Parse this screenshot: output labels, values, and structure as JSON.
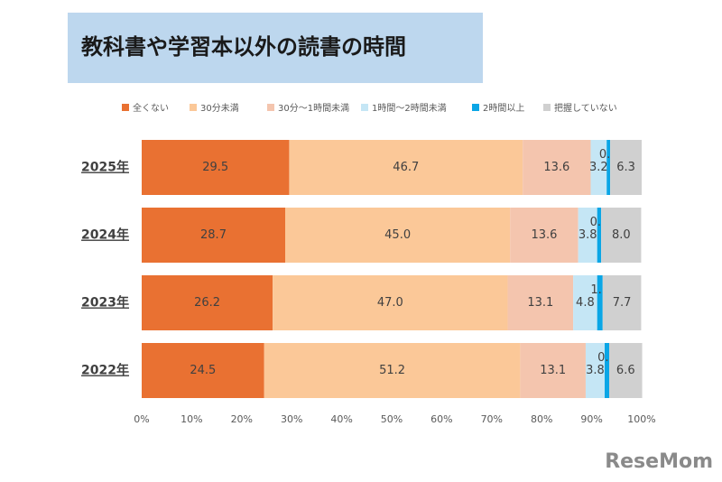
{
  "chart_data": {
    "type": "stacked-bar-horizontal",
    "title": "教科書や学習本以外の読書の時間",
    "categories": [
      "2025年",
      "2024年",
      "2023年",
      "2022年"
    ],
    "series": [
      {
        "name": "全くない",
        "color": "#e97132",
        "values": [
          29.5,
          28.7,
          26.2,
          24.5
        ]
      },
      {
        "name": "30分未満",
        "color": "#fbc898",
        "values": [
          46.7,
          45.0,
          47.0,
          51.2
        ],
        "value_labels": [
          "46.7",
          "45.0",
          "47.0",
          "51.2"
        ]
      },
      {
        "name": "30分～1時間未満",
        "color": "#f4c5ae",
        "values": [
          13.6,
          13.6,
          13.1,
          13.1
        ]
      },
      {
        "name": "1時間～2時間未満",
        "color": "#c5e6f5",
        "values": [
          3.2,
          3.8,
          4.8,
          3.8
        ]
      },
      {
        "name": "2時間以上",
        "color": "#0aa6e6",
        "values": [
          0.7,
          0.8,
          1.1,
          0.9
        ]
      },
      {
        "name": "把握していない",
        "color": "#d0d0d0",
        "values": [
          6.3,
          8.0,
          7.7,
          6.6
        ],
        "value_labels": [
          "6.3",
          "8.0",
          "7.7",
          "6.6"
        ]
      }
    ],
    "xlim": [
      0,
      100
    ],
    "xticks": [
      {
        "value": 0,
        "label": "0%"
      },
      {
        "value": 10,
        "label": "10%"
      },
      {
        "value": 20,
        "label": "20%"
      },
      {
        "value": 30,
        "label": "30%"
      },
      {
        "value": 40,
        "label": "40%"
      },
      {
        "value": 50,
        "label": "50%"
      },
      {
        "value": 60,
        "label": "60%"
      },
      {
        "value": 70,
        "label": "70%"
      },
      {
        "value": 80,
        "label": "80%"
      },
      {
        "value": 90,
        "label": "90%"
      },
      {
        "value": 100,
        "label": "100%"
      }
    ],
    "legend": "top",
    "watermark": "ReseMom"
  }
}
